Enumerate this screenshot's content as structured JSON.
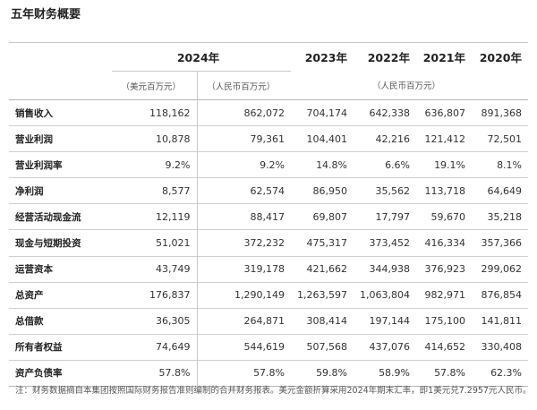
{
  "title": "五年财务概要",
  "years": [
    "2024年",
    "2023年",
    "2022年",
    "2021年",
    "2020年"
  ],
  "units": {
    "usd": "（美元百万元）",
    "rmb": "（人民币百万元）",
    "rmb_hist": "（人民币百万元）"
  },
  "rows": [
    {
      "label": "销售收入",
      "usd": "118,162",
      "v2024": "862,072",
      "v2023": "704,174",
      "v2022": "642,338",
      "v2021": "636,807",
      "v2020": "891,368"
    },
    {
      "label": "营业利润",
      "usd": "10,878",
      "v2024": "79,361",
      "v2023": "104,401",
      "v2022": "42,216",
      "v2021": "121,412",
      "v2020": "72,501"
    },
    {
      "label": "营业利润率",
      "usd": "9.2%",
      "v2024": "9.2%",
      "v2023": "14.8%",
      "v2022": "6.6%",
      "v2021": "19.1%",
      "v2020": "8.1%"
    },
    {
      "label": "净利润",
      "usd": "8,577",
      "v2024": "62,574",
      "v2023": "86,950",
      "v2022": "35,562",
      "v2021": "113,718",
      "v2020": "64,649"
    },
    {
      "label": "经营活动现金流",
      "usd": "12,119",
      "v2024": "88,417",
      "v2023": "69,807",
      "v2022": "17,797",
      "v2021": "59,670",
      "v2020": "35,218"
    },
    {
      "label": "现金与短期投资",
      "usd": "51,021",
      "v2024": "372,232",
      "v2023": "475,317",
      "v2022": "373,452",
      "v2021": "416,334",
      "v2020": "357,366"
    },
    {
      "label": "运营资本",
      "usd": "43,749",
      "v2024": "319,178",
      "v2023": "421,662",
      "v2022": "344,938",
      "v2021": "376,923",
      "v2020": "299,062"
    },
    {
      "label": "总资产",
      "usd": "176,837",
      "v2024": "1,290,149",
      "v2023": "1,263,597",
      "v2022": "1,063,804",
      "v2021": "982,971",
      "v2020": "876,854"
    },
    {
      "label": "总借款",
      "usd": "36,305",
      "v2024": "264,871",
      "v2023": "308,414",
      "v2022": "197,144",
      "v2021": "175,100",
      "v2020": "141,811"
    },
    {
      "label": "所有者权益",
      "usd": "74,649",
      "v2024": "544,619",
      "v2023": "507,568",
      "v2022": "437,076",
      "v2021": "414,652",
      "v2020": "330,408"
    },
    {
      "label": "资产负债率",
      "usd": "57.8%",
      "v2024": "57.8%",
      "v2023": "59.8%",
      "v2022": "58.9%",
      "v2021": "57.8%",
      "v2020": "62.3%"
    }
  ],
  "note": "注：财务数据摘自本集团按照国际财务报告准则编制的合并财务报表。美元金额折算采用2024年期末汇率，即1美元兑7.2957元人民币。"
}
